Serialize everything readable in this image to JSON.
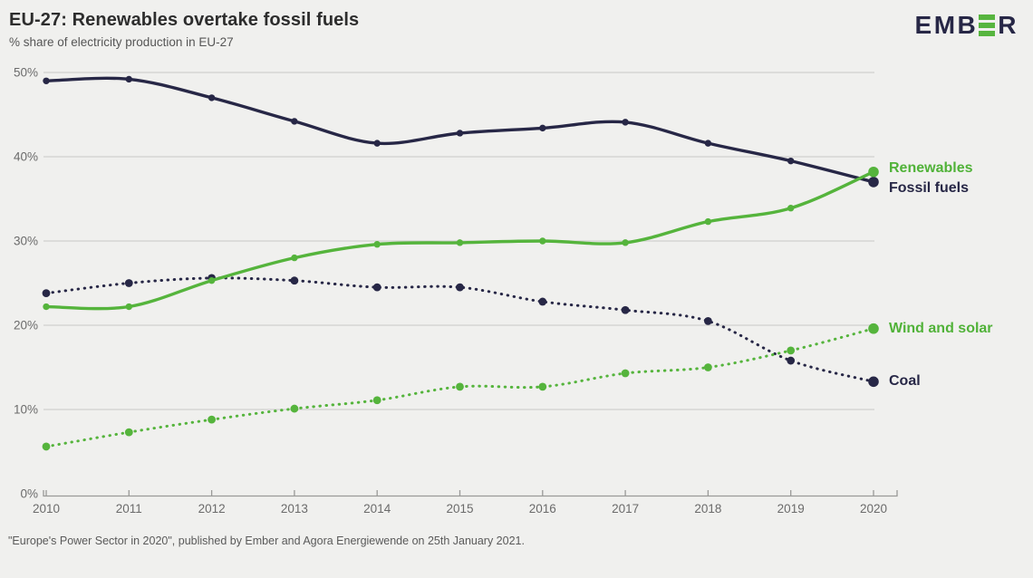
{
  "header": {
    "title": "EU-27: Renewables overtake fossil fuels",
    "subtitle": "% share of electricity production in EU-27"
  },
  "logo": {
    "text_before": "EMB",
    "text_after": "R",
    "icon": "ember-logo-green-e-icon"
  },
  "colors": {
    "green": "#55b43c",
    "navy": "#272746",
    "background": "#f0f0ee",
    "grid": "#cfcfcd",
    "axis": "#9a9a98",
    "tick_text": "#6b6b6b",
    "title_text": "#2d2d2d",
    "muted_text": "#565656"
  },
  "chart_data": {
    "type": "line",
    "title": "EU-27: Renewables overtake fossil fuels",
    "subtitle": "% share of electricity production in EU-27",
    "x": [
      2010,
      2011,
      2012,
      2013,
      2014,
      2015,
      2016,
      2017,
      2018,
      2019,
      2020
    ],
    "series": [
      {
        "name": "Fossil fuels",
        "color_key": "navy",
        "line_style": "solid",
        "values": [
          49.0,
          49.2,
          47.0,
          44.2,
          41.6,
          42.8,
          43.4,
          44.1,
          41.6,
          39.5,
          37.0
        ]
      },
      {
        "name": "Renewables",
        "color_key": "green",
        "line_style": "solid",
        "values": [
          22.2,
          22.2,
          25.3,
          28.0,
          29.6,
          29.8,
          30.0,
          29.8,
          32.3,
          33.9,
          38.2
        ]
      },
      {
        "name": "Coal",
        "color_key": "navy",
        "line_style": "dotted",
        "values": [
          23.8,
          25.0,
          25.6,
          25.3,
          24.5,
          24.5,
          22.8,
          21.8,
          20.5,
          15.8,
          13.3
        ]
      },
      {
        "name": "Wind and solar",
        "color_key": "green",
        "line_style": "dotted",
        "values": [
          5.6,
          7.3,
          8.8,
          10.1,
          11.1,
          12.7,
          12.7,
          14.3,
          15.0,
          17.0,
          19.6
        ]
      }
    ],
    "ylim": [
      0,
      50
    ],
    "yticks": [
      {
        "value": 0,
        "label": "0%"
      },
      {
        "value": 10,
        "label": "10%"
      },
      {
        "value": 20,
        "label": "20%"
      },
      {
        "value": 30,
        "label": "30%"
      },
      {
        "value": 40,
        "label": "40%"
      },
      {
        "value": 50,
        "label": "50%"
      }
    ],
    "grid": true,
    "legend_position": "right-end-labels"
  },
  "footer": {
    "source": "\"Europe's Power Sector in 2020\", published by Ember and Agora Energiewende on 25th January 2021."
  }
}
